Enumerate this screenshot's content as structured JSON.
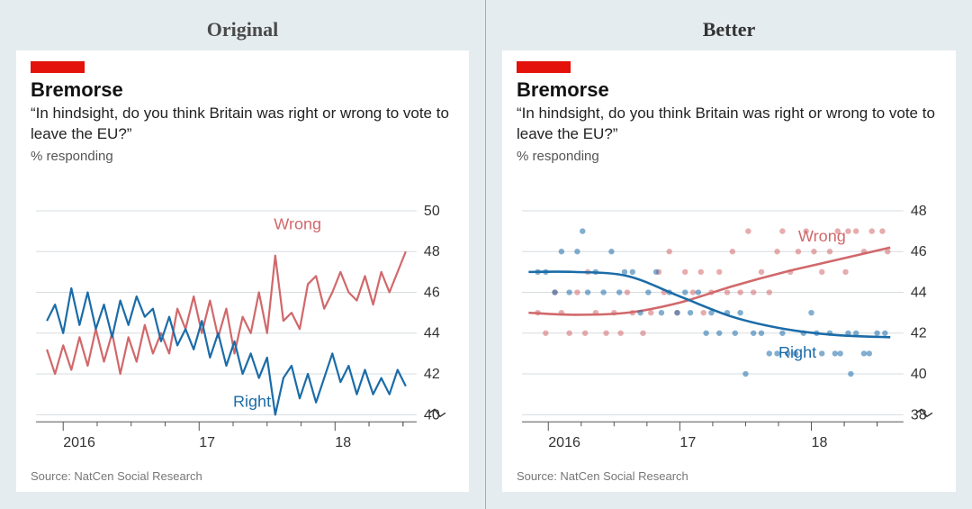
{
  "left": {
    "panel_label": "Original",
    "title": "Bremorse",
    "subtitle": "“In hindsight, do you think Britain was right or wrong to vote to leave the EU?”",
    "unit": "% responding",
    "source": "Source: NatCen Social Research",
    "chart": {
      "type": "line",
      "ylim": [
        40,
        50
      ],
      "yticks": [
        40,
        42,
        44,
        46,
        48,
        50
      ],
      "y_fontsize": 16,
      "xdomain": [
        2015.8,
        2018.6
      ],
      "xticks": [
        2016,
        2017,
        2018
      ],
      "xtick_labels": [
        "2016",
        "17",
        "18"
      ],
      "x_fontsize": 16,
      "minor_ticks_per_year": 4,
      "grid_color": "#d7dde0",
      "axis_color": "#555",
      "background": "#ffffff",
      "line_width": 2.2,
      "break_glyph": true,
      "series": [
        {
          "name": "Wrong",
          "color": "#d1686b",
          "label_anchor_x": 2017.55,
          "label_anchor_y": 49.1,
          "points": [
            [
              2015.88,
              43.2
            ],
            [
              2015.94,
              42.0
            ],
            [
              2016.0,
              43.4
            ],
            [
              2016.06,
              42.2
            ],
            [
              2016.12,
              43.8
            ],
            [
              2016.18,
              42.4
            ],
            [
              2016.24,
              44.2
            ],
            [
              2016.3,
              42.6
            ],
            [
              2016.36,
              44.0
            ],
            [
              2016.42,
              42.0
            ],
            [
              2016.48,
              43.8
            ],
            [
              2016.54,
              42.6
            ],
            [
              2016.6,
              44.4
            ],
            [
              2016.66,
              43.0
            ],
            [
              2016.72,
              44.0
            ],
            [
              2016.78,
              43.0
            ],
            [
              2016.84,
              45.2
            ],
            [
              2016.9,
              44.2
            ],
            [
              2016.96,
              45.8
            ],
            [
              2017.02,
              44.0
            ],
            [
              2017.08,
              45.6
            ],
            [
              2017.14,
              43.8
            ],
            [
              2017.2,
              45.2
            ],
            [
              2017.26,
              43.0
            ],
            [
              2017.32,
              44.8
            ],
            [
              2017.38,
              44.0
            ],
            [
              2017.44,
              46.0
            ],
            [
              2017.5,
              44.0
            ],
            [
              2017.56,
              47.8
            ],
            [
              2017.62,
              44.6
            ],
            [
              2017.68,
              45.0
            ],
            [
              2017.74,
              44.2
            ],
            [
              2017.8,
              46.4
            ],
            [
              2017.86,
              46.8
            ],
            [
              2017.92,
              45.2
            ],
            [
              2017.98,
              46.0
            ],
            [
              2018.04,
              47.0
            ],
            [
              2018.1,
              46.0
            ],
            [
              2018.16,
              45.6
            ],
            [
              2018.22,
              46.8
            ],
            [
              2018.28,
              45.4
            ],
            [
              2018.34,
              47.0
            ],
            [
              2018.4,
              46.0
            ],
            [
              2018.46,
              47.0
            ],
            [
              2018.52,
              48.0
            ]
          ]
        },
        {
          "name": "Right",
          "color": "#1b6ca8",
          "label_anchor_x": 2017.25,
          "label_anchor_y": 40.4,
          "points": [
            [
              2015.88,
              44.6
            ],
            [
              2015.94,
              45.4
            ],
            [
              2016.0,
              44.0
            ],
            [
              2016.06,
              46.2
            ],
            [
              2016.12,
              44.4
            ],
            [
              2016.18,
              46.0
            ],
            [
              2016.24,
              44.2
            ],
            [
              2016.3,
              45.4
            ],
            [
              2016.36,
              43.8
            ],
            [
              2016.42,
              45.6
            ],
            [
              2016.48,
              44.4
            ],
            [
              2016.54,
              45.8
            ],
            [
              2016.6,
              44.8
            ],
            [
              2016.66,
              45.2
            ],
            [
              2016.72,
              43.6
            ],
            [
              2016.78,
              44.8
            ],
            [
              2016.84,
              43.4
            ],
            [
              2016.9,
              44.2
            ],
            [
              2016.96,
              43.2
            ],
            [
              2017.02,
              44.6
            ],
            [
              2017.08,
              42.8
            ],
            [
              2017.14,
              44.0
            ],
            [
              2017.2,
              42.4
            ],
            [
              2017.26,
              43.6
            ],
            [
              2017.32,
              42.0
            ],
            [
              2017.38,
              43.0
            ],
            [
              2017.44,
              41.8
            ],
            [
              2017.5,
              42.8
            ],
            [
              2017.56,
              40.0
            ],
            [
              2017.62,
              41.8
            ],
            [
              2017.68,
              42.4
            ],
            [
              2017.74,
              40.8
            ],
            [
              2017.8,
              42.0
            ],
            [
              2017.86,
              40.6
            ],
            [
              2017.92,
              41.8
            ],
            [
              2017.98,
              43.0
            ],
            [
              2018.04,
              41.6
            ],
            [
              2018.1,
              42.4
            ],
            [
              2018.16,
              41.0
            ],
            [
              2018.22,
              42.2
            ],
            [
              2018.28,
              41.0
            ],
            [
              2018.34,
              41.8
            ],
            [
              2018.4,
              41.0
            ],
            [
              2018.46,
              42.2
            ],
            [
              2018.52,
              41.4
            ]
          ]
        }
      ]
    }
  },
  "right": {
    "panel_label": "Better",
    "title": "Bremorse",
    "subtitle": "“In hindsight, do you think Britain was right or wrong to vote to leave the EU?”",
    "unit": "% responding",
    "source": "Source: NatCen Social Research",
    "chart": {
      "type": "scatter-with-smoothed-line",
      "ylim": [
        38,
        48
      ],
      "yticks": [
        38,
        40,
        42,
        44,
        46,
        48
      ],
      "y_fontsize": 16,
      "xdomain": [
        2015.8,
        2018.7
      ],
      "xticks": [
        2016,
        2017,
        2018
      ],
      "xtick_labels": [
        "2016",
        "17",
        "18"
      ],
      "x_fontsize": 16,
      "minor_ticks_per_year": 4,
      "grid_color": "#d7dde0",
      "axis_color": "#555",
      "background": "#ffffff",
      "marker_radius": 3.2,
      "marker_opacity": 0.55,
      "line_width": 2.6,
      "break_glyph": true,
      "series": [
        {
          "name": "Wrong",
          "color": "#d1686b",
          "label_anchor_x": 2017.9,
          "label_anchor_y": 46.5,
          "smooth": [
            [
              2015.85,
              43.0
            ],
            [
              2016.2,
              42.9
            ],
            [
              2016.6,
              43.0
            ],
            [
              2017.0,
              43.5
            ],
            [
              2017.4,
              44.3
            ],
            [
              2017.8,
              45.0
            ],
            [
              2018.2,
              45.6
            ],
            [
              2018.6,
              46.2
            ]
          ],
          "points": [
            [
              2015.92,
              43
            ],
            [
              2015.98,
              42
            ],
            [
              2016.05,
              44
            ],
            [
              2016.1,
              43
            ],
            [
              2016.16,
              42
            ],
            [
              2016.22,
              44
            ],
            [
              2016.28,
              42
            ],
            [
              2016.3,
              45
            ],
            [
              2016.36,
              43
            ],
            [
              2016.44,
              42
            ],
            [
              2016.5,
              43
            ],
            [
              2016.55,
              42
            ],
            [
              2016.6,
              44
            ],
            [
              2016.64,
              43
            ],
            [
              2016.72,
              42
            ],
            [
              2016.78,
              43
            ],
            [
              2016.84,
              45
            ],
            [
              2016.88,
              44
            ],
            [
              2016.92,
              46
            ],
            [
              2016.98,
              43
            ],
            [
              2017.04,
              45
            ],
            [
              2017.1,
              44
            ],
            [
              2017.16,
              45
            ],
            [
              2017.18,
              43
            ],
            [
              2017.24,
              44
            ],
            [
              2017.3,
              45
            ],
            [
              2017.36,
              44
            ],
            [
              2017.4,
              46
            ],
            [
              2017.46,
              44
            ],
            [
              2017.52,
              47
            ],
            [
              2017.56,
              44
            ],
            [
              2017.62,
              45
            ],
            [
              2017.68,
              44
            ],
            [
              2017.74,
              46
            ],
            [
              2017.78,
              47
            ],
            [
              2017.84,
              45
            ],
            [
              2017.9,
              46
            ],
            [
              2017.96,
              47
            ],
            [
              2018.02,
              46
            ],
            [
              2018.08,
              45
            ],
            [
              2018.14,
              46
            ],
            [
              2018.2,
              47
            ],
            [
              2018.26,
              45
            ],
            [
              2018.28,
              47
            ],
            [
              2018.34,
              47
            ],
            [
              2018.4,
              46
            ],
            [
              2018.46,
              47
            ],
            [
              2018.54,
              47
            ],
            [
              2018.58,
              46
            ]
          ]
        },
        {
          "name": "Right",
          "color": "#1b6ca8",
          "label_anchor_x": 2017.75,
          "label_anchor_y": 40.8,
          "smooth": [
            [
              2015.85,
              45.0
            ],
            [
              2016.2,
              45.0
            ],
            [
              2016.6,
              44.8
            ],
            [
              2017.0,
              43.8
            ],
            [
              2017.4,
              42.8
            ],
            [
              2017.8,
              42.2
            ],
            [
              2018.2,
              41.9
            ],
            [
              2018.6,
              41.8
            ]
          ],
          "points": [
            [
              2015.92,
              45
            ],
            [
              2015.98,
              45
            ],
            [
              2016.05,
              44
            ],
            [
              2016.1,
              46
            ],
            [
              2016.16,
              44
            ],
            [
              2016.22,
              46
            ],
            [
              2016.26,
              47
            ],
            [
              2016.3,
              44
            ],
            [
              2016.36,
              45
            ],
            [
              2016.42,
              44
            ],
            [
              2016.48,
              46
            ],
            [
              2016.54,
              44
            ],
            [
              2016.58,
              45
            ],
            [
              2016.64,
              45
            ],
            [
              2016.7,
              43
            ],
            [
              2016.76,
              44
            ],
            [
              2016.82,
              45
            ],
            [
              2016.86,
              43
            ],
            [
              2016.92,
              44
            ],
            [
              2016.98,
              43
            ],
            [
              2017.04,
              44
            ],
            [
              2017.08,
              43
            ],
            [
              2017.14,
              44
            ],
            [
              2017.2,
              42
            ],
            [
              2017.24,
              43
            ],
            [
              2017.3,
              42
            ],
            [
              2017.36,
              43
            ],
            [
              2017.42,
              42
            ],
            [
              2017.46,
              43
            ],
            [
              2017.5,
              40
            ],
            [
              2017.56,
              42
            ],
            [
              2017.62,
              42
            ],
            [
              2017.68,
              41
            ],
            [
              2017.74,
              41
            ],
            [
              2017.78,
              42
            ],
            [
              2017.82,
              41
            ],
            [
              2017.88,
              41
            ],
            [
              2017.94,
              42
            ],
            [
              2018.0,
              43
            ],
            [
              2018.04,
              42
            ],
            [
              2018.08,
              41
            ],
            [
              2018.14,
              42
            ],
            [
              2018.18,
              41
            ],
            [
              2018.22,
              41
            ],
            [
              2018.28,
              42
            ],
            [
              2018.3,
              40
            ],
            [
              2018.34,
              42
            ],
            [
              2018.4,
              41
            ],
            [
              2018.44,
              41
            ],
            [
              2018.5,
              42
            ],
            [
              2018.56,
              42
            ]
          ]
        }
      ]
    }
  }
}
